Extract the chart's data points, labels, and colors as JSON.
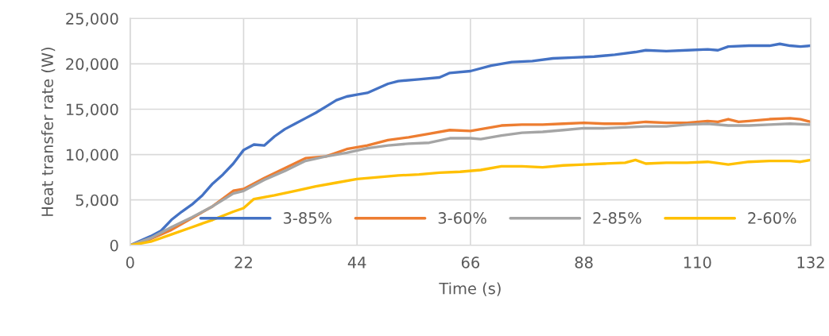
{
  "chart_data": {
    "type": "line",
    "xlabel": "Time (s)",
    "ylabel": "Heat transfer rate (W)",
    "xlim": [
      0,
      132
    ],
    "xticks": [
      0,
      22,
      44,
      66,
      88,
      110,
      132
    ],
    "ylim": [
      0,
      25000
    ],
    "yticks": [
      0,
      {
        "value": 5000,
        "label": "5,000"
      },
      {
        "value": 10000,
        "label": "10,000"
      },
      {
        "value": 15000,
        "label": "15,000"
      },
      {
        "value": 20000,
        "label": "20,000"
      },
      {
        "value": 25000,
        "label": "25,000"
      }
    ],
    "grid": true,
    "legend": "bottom right",
    "marker": "none",
    "line_style": "solid",
    "series": [
      {
        "name": "3-85%",
        "color": "#4472c4",
        "x": [
          0,
          2,
          4,
          6,
          8,
          10,
          12,
          14,
          16,
          18,
          20,
          22,
          24,
          26,
          28,
          30,
          32,
          34,
          36,
          38,
          40,
          42,
          44,
          46,
          48,
          50,
          52,
          56,
          60,
          62,
          66,
          70,
          74,
          78,
          82,
          86,
          90,
          94,
          98,
          100,
          104,
          108,
          112,
          114,
          116,
          120,
          124,
          126,
          128,
          130,
          132
        ],
        "values": [
          0,
          500,
          1000,
          1600,
          2800,
          3700,
          4500,
          5500,
          6800,
          7800,
          9000,
          10500,
          11100,
          11000,
          12000,
          12800,
          13400,
          14000,
          14600,
          15300,
          16000,
          16400,
          16600,
          16800,
          17300,
          17800,
          18100,
          18300,
          18500,
          19000,
          19200,
          19800,
          20200,
          20300,
          20600,
          20700,
          20800,
          21000,
          21300,
          21500,
          21400,
          21500,
          21600,
          21500,
          21900,
          22000,
          22000,
          22200,
          22000,
          21900,
          22000
        ]
      },
      {
        "name": "3-60%",
        "color": "#ed7d31",
        "x": [
          0,
          4,
          8,
          12,
          16,
          20,
          22,
          26,
          30,
          34,
          38,
          42,
          46,
          50,
          54,
          58,
          62,
          66,
          68,
          72,
          76,
          80,
          84,
          88,
          92,
          96,
          100,
          104,
          108,
          112,
          114,
          116,
          118,
          120,
          124,
          128,
          130,
          132
        ],
        "values": [
          0,
          700,
          1700,
          3000,
          4300,
          6000,
          6200,
          7400,
          8500,
          9600,
          9800,
          10600,
          11000,
          11600,
          11900,
          12300,
          12700,
          12600,
          12800,
          13200,
          13300,
          13300,
          13400,
          13500,
          13400,
          13400,
          13600,
          13500,
          13500,
          13700,
          13600,
          13900,
          13600,
          13700,
          13900,
          14000,
          13900,
          13600
        ]
      },
      {
        "name": "2-85%",
        "color": "#a5a5a5",
        "x": [
          0,
          4,
          8,
          12,
          16,
          20,
          22,
          26,
          30,
          34,
          38,
          42,
          46,
          50,
          54,
          58,
          62,
          66,
          68,
          72,
          76,
          80,
          84,
          88,
          92,
          96,
          100,
          104,
          108,
          112,
          116,
          120,
          124,
          128,
          132
        ],
        "values": [
          0,
          800,
          2000,
          3100,
          4300,
          5700,
          6000,
          7200,
          8200,
          9300,
          9800,
          10200,
          10700,
          11000,
          11200,
          11300,
          11800,
          11800,
          11700,
          12100,
          12400,
          12500,
          12700,
          12900,
          12900,
          13000,
          13100,
          13100,
          13300,
          13400,
          13200,
          13200,
          13300,
          13400,
          13300
        ]
      },
      {
        "name": "2-60%",
        "color": "#ffc000",
        "x": [
          0,
          4,
          8,
          12,
          16,
          20,
          22,
          24,
          28,
          32,
          36,
          40,
          44,
          48,
          52,
          56,
          60,
          64,
          68,
          72,
          76,
          80,
          84,
          88,
          92,
          96,
          98,
          100,
          104,
          108,
          112,
          116,
          120,
          124,
          128,
          130,
          132
        ],
        "values": [
          0,
          400,
          1200,
          2000,
          2800,
          3700,
          4100,
          5100,
          5500,
          6000,
          6500,
          6900,
          7300,
          7500,
          7700,
          7800,
          8000,
          8100,
          8300,
          8700,
          8700,
          8600,
          8800,
          8900,
          9000,
          9100,
          9400,
          9000,
          9100,
          9100,
          9200,
          8900,
          9200,
          9300,
          9300,
          9200,
          9400
        ]
      }
    ]
  }
}
